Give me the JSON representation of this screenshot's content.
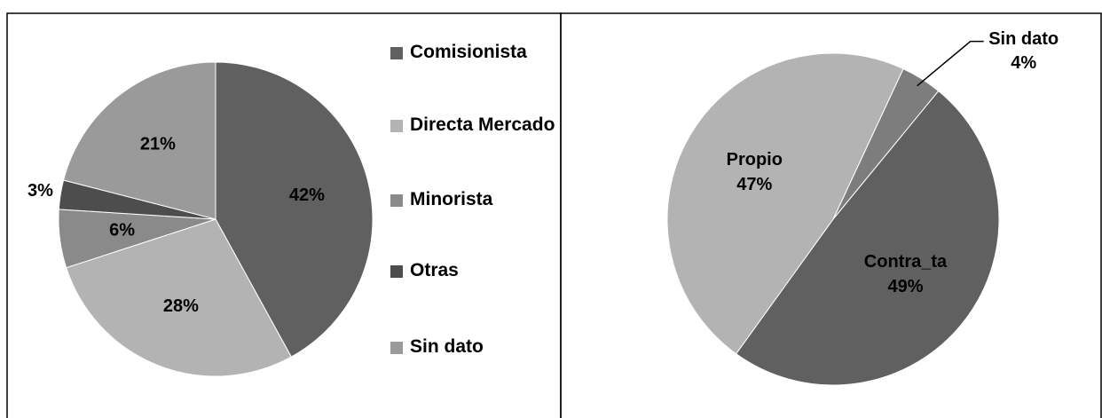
{
  "chart_data": [
    {
      "type": "pie",
      "categories": [
        "Comisionista",
        "Directa Mercado",
        "Minorista",
        "Otras",
        "Sin dato"
      ],
      "values": [
        42,
        28,
        6,
        3,
        21
      ],
      "value_labels": [
        "42%",
        "28%",
        "6%",
        "3%",
        "21%"
      ],
      "colors": [
        "#606060",
        "#b3b3b3",
        "#8a8a8a",
        "#4d4d4d",
        "#9a9a9a"
      ],
      "legend": "right"
    },
    {
      "type": "pie",
      "categories": [
        "Sin dato",
        "Contra_ta",
        "Propio"
      ],
      "values": [
        4,
        49,
        47
      ],
      "value_labels": [
        "4%",
        "49%",
        "47%"
      ],
      "colors": [
        "#7d7d7d",
        "#606060",
        "#b3b3b3"
      ]
    }
  ]
}
